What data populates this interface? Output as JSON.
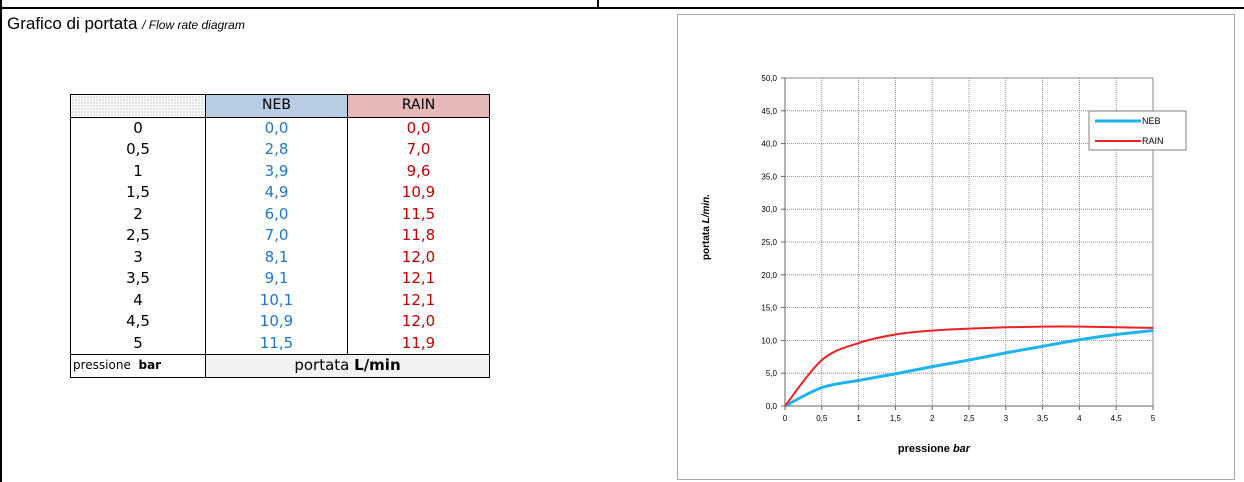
{
  "header": {
    "title_it": "Grafico di portata",
    "title_en": "/ Flow rate diagram"
  },
  "table": {
    "headers": [
      "NEB",
      "RAIN"
    ],
    "rows": [
      [
        "0",
        "0,0",
        "0,0"
      ],
      [
        "0,5",
        "2,8",
        "7,0"
      ],
      [
        "1",
        "3,9",
        "9,6"
      ],
      [
        "1,5",
        "4,9",
        "10,9"
      ],
      [
        "2",
        "6,0",
        "11,5"
      ],
      [
        "2,5",
        "7,0",
        "11,8"
      ],
      [
        "3",
        "8,1",
        "12,0"
      ],
      [
        "3,5",
        "9,1",
        "12,1"
      ],
      [
        "4",
        "10,1",
        "12,1"
      ],
      [
        "4,5",
        "10,9",
        "12,0"
      ],
      [
        "5",
        "11,5",
        "11,9"
      ]
    ],
    "footer_pressure_word": "pressione",
    "footer_pressure_unit": "bar",
    "footer_flow_word": "portata",
    "footer_flow_unit": "L/min"
  },
  "colors": {
    "neb": "#1fb3ee",
    "rain": "#ee2222",
    "neb_text": "#1f77c9",
    "rain_text": "#c00000"
  },
  "chart_data": {
    "type": "line",
    "x": [
      0,
      0.5,
      1,
      1.5,
      2,
      2.5,
      3,
      3.5,
      4,
      4.5,
      5
    ],
    "x_tick_labels": [
      "0",
      "0,5",
      "1",
      "1,5",
      "2",
      "2,5",
      "3",
      "3,5",
      "4",
      "4,5",
      "5"
    ],
    "y_tick_labels": [
      "0,0",
      "5,0",
      "10,0",
      "15,0",
      "20,0",
      "25,0",
      "30,0",
      "35,0",
      "40,0",
      "45,0",
      "50,0"
    ],
    "series": [
      {
        "name": "NEB",
        "values": [
          0.0,
          2.8,
          3.9,
          4.9,
          6.0,
          7.0,
          8.1,
          9.1,
          10.1,
          10.9,
          11.5
        ]
      },
      {
        "name": "RAIN",
        "values": [
          0.0,
          7.0,
          9.6,
          10.9,
          11.5,
          11.8,
          12.0,
          12.1,
          12.1,
          12.0,
          11.9
        ]
      }
    ],
    "xlabel_word": "pressione",
    "xlabel_unit": "bar",
    "ylabel_word": "portata",
    "ylabel_unit": "L/min.",
    "xlim": [
      0,
      5
    ],
    "ylim": [
      0,
      50
    ],
    "grid": true,
    "legend_position": "top-right"
  }
}
